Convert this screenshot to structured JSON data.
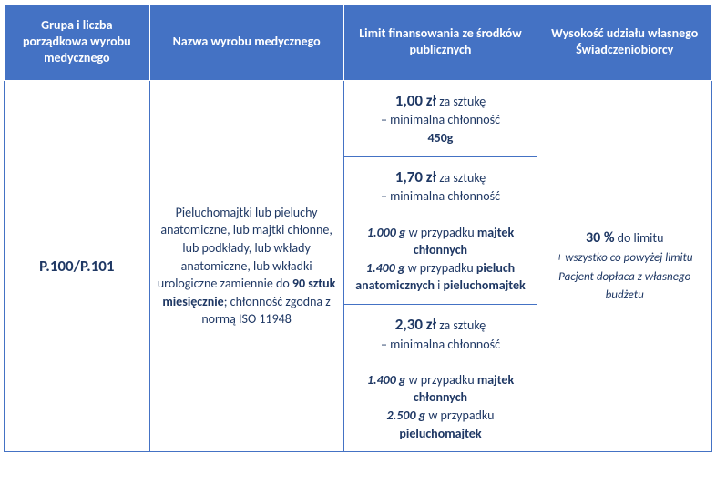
{
  "headers": {
    "h1": "Grupa i liczba porządkowa wyrobu medycznego",
    "h2": "Nazwa wyrobu medycznego",
    "h3": "Limit finansowania ze środków publicznych",
    "h4": "Wysokość udziału własnego Świadczeniobiorcy"
  },
  "rowCode": "P.100/P.101",
  "productDesc": {
    "pre": "Pieluchomajtki lub pieluchy anatomiczne, lub majtki chłonne, lub podkłady, lub wkłady anatomiczne, lub wkładki urologiczne zamiennie do ",
    "bold": "90 sztuk miesięcznie",
    "post": "; chłonność zgodna z normą ISO 11948"
  },
  "limits": [
    {
      "price": "1,00 zł",
      "unit": " za sztukę",
      "line2": "– minimalna chłonność",
      "line3bold": "450g"
    },
    {
      "price": "1,70 zł",
      "unit": " za sztukę",
      "line2": "– minimalna chłonność",
      "g1": "1.000 g",
      "t1": " w przypadku ",
      "b1": "majtek chłonnych",
      "g2": "1.400 g",
      "t2": " w przypadku ",
      "b2a": "pieluch anatomicznych",
      "b2and": " i ",
      "b2b": "pieluchomajtek"
    },
    {
      "price": "2,30 zł",
      "unit": " za sztukę",
      "line2": "– minimalna chłonność",
      "g1": "1.400 g",
      "t1": " w przypadku ",
      "b1": "majtek chłonnych",
      "g2": "2.500 g",
      "t2": " w przypadku ",
      "b2": "pieluchomajtek"
    }
  ],
  "share": {
    "pct": "30 %",
    "pctText": " do limitu",
    "note": "+ wszystko co powyżej limitu Pacjent dopłaca z własnego budżetu"
  },
  "style": {
    "headerBg": "#4472c4",
    "headerColor": "#ffffff",
    "borderColor": "#4472c4",
    "textColor": "#1f3864"
  }
}
